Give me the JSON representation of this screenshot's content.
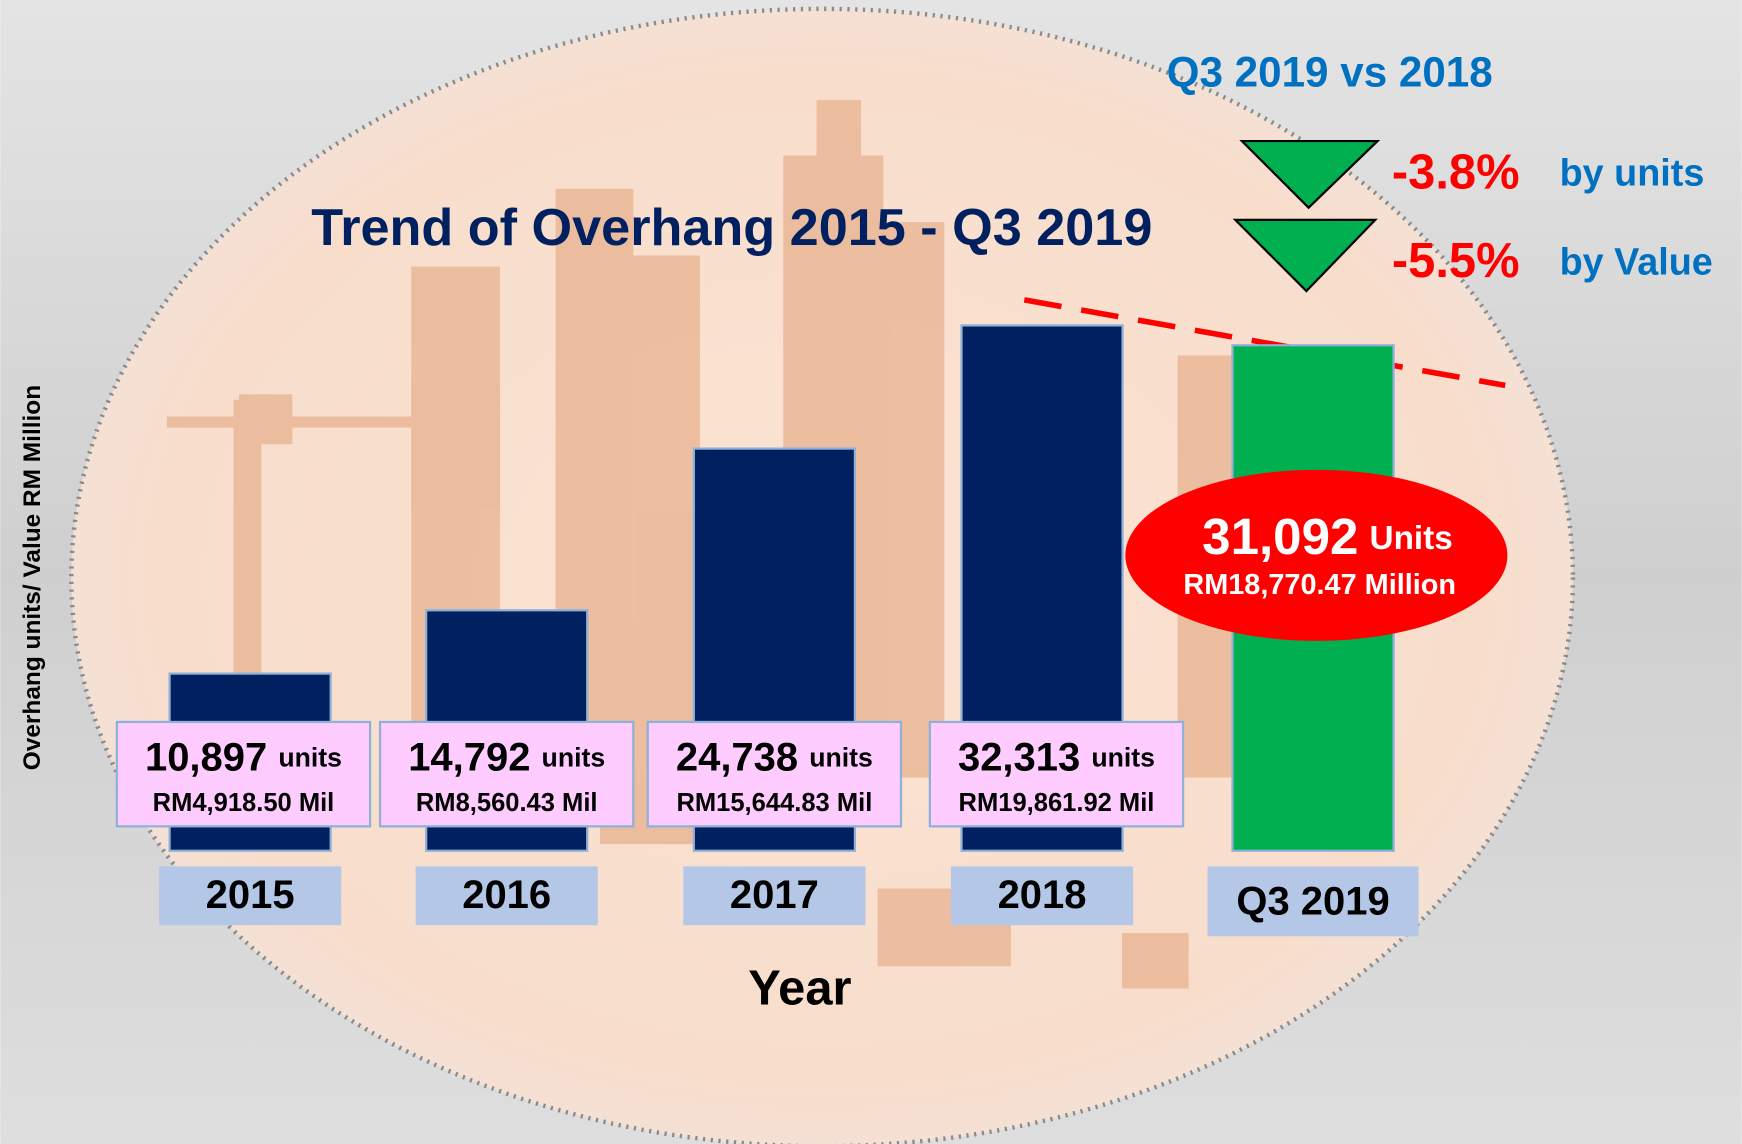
{
  "chart_data": {
    "type": "bar",
    "title": "Trend of Overhang 2015  - Q3 2019",
    "x_label": "Year",
    "y_label": "Overhang units/ Value RM Million",
    "categories": [
      "2015",
      "2016",
      "2017",
      "2018",
      "Q3 2019"
    ],
    "series": [
      {
        "color": "#002060",
        "highlight_color": "#00b050",
        "values": [
          10897,
          14792,
          24738,
          32313,
          31092
        ],
        "value_labels": [
          "10,897",
          "14,792",
          "24,738",
          "32,313",
          "31,092"
        ],
        "unit_labels": [
          "units",
          "units",
          "units",
          "units",
          "Units"
        ]
      },
      {
        "values": [
          4918.5,
          8560.43,
          15644.83,
          19861.92,
          18770.47
        ],
        "value_labels": [
          "RM4,918.50 Mil",
          "RM8,560.43 Mil",
          "RM15,644.83 Mil",
          "RM19,861.92 Mil",
          "RM18,770.47 Million"
        ]
      }
    ],
    "comparison": {
      "title": "Q3 2019 vs 2018",
      "changes": [
        {
          "value": -3.8,
          "label": "-3.8%",
          "text": "by units"
        },
        {
          "value": -5.5,
          "label": "-5.5%",
          "text": "by Value"
        }
      ]
    }
  }
}
